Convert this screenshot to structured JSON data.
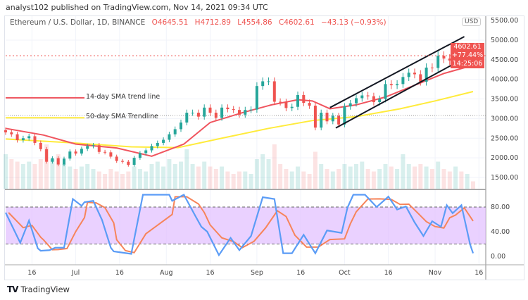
{
  "header": {
    "published": "analyst102 published on TradingView.com, Nov 14, 2021 09:34 UTC"
  },
  "legend": {
    "symbol": "Ethereum / U.S. Dollar, 1D, BINANCE",
    "open": "O4645.51",
    "high": "H4712.89",
    "low": "L4554.86",
    "close": "C4602.61",
    "change": "−43.13 (−0.93%)"
  },
  "price_label": {
    "price": "4602.61",
    "change_pct": "+77.44%",
    "countdown": "14:25:06"
  },
  "currency": "USD",
  "footer": {
    "logo_text": "TradingView"
  },
  "colors": {
    "up": "#26a69a",
    "down": "#ef5350",
    "sma14": "#f0545e",
    "sma50": "#ffeb3b",
    "stoch_k": "#5b9cf6",
    "stoch_d": "#f7845a",
    "band": "#e1bdff"
  },
  "chart_data": [
    {
      "type": "candlestick",
      "price_axis": {
        "ticks": [
          "5500.00",
          "5000.00",
          "4500.00",
          "4000.00",
          "3500.00",
          "3000.00",
          "2500.00",
          "2000.00",
          "1500.00"
        ],
        "range": [
          1400,
          5450
        ]
      },
      "time_axis": {
        "ticks": [
          {
            "date": "2021-06-16",
            "label": "16"
          },
          {
            "date": "2021-07-01",
            "label": "Jul"
          },
          {
            "date": "2021-07-16",
            "label": "16"
          },
          {
            "date": "2021-08-01",
            "label": "Aug"
          },
          {
            "date": "2021-08-16",
            "label": "16"
          },
          {
            "date": "2021-09-01",
            "label": "Sep"
          },
          {
            "date": "2021-09-16",
            "label": "16"
          },
          {
            "date": "2021-10-01",
            "label": "Oct"
          },
          {
            "date": "2021-10-16",
            "label": "16"
          },
          {
            "date": "2021-11-01",
            "label": "Nov"
          },
          {
            "date": "2021-11-16",
            "label": "16"
          }
        ],
        "range": [
          "2021-06-06",
          "2021-11-17"
        ]
      },
      "grid": true,
      "candles": [
        [
          "2021-06-07",
          2650
        ],
        [
          "2021-06-09",
          2600
        ],
        [
          "2021-06-11",
          2450
        ],
        [
          "2021-06-13",
          2500
        ],
        [
          "2021-06-15",
          2550
        ],
        [
          "2021-06-17",
          2380
        ],
        [
          "2021-06-19",
          2220
        ],
        [
          "2021-06-21",
          1900
        ],
        [
          "2021-06-23",
          1990
        ],
        [
          "2021-06-25",
          1830
        ],
        [
          "2021-06-27",
          1980
        ],
        [
          "2021-06-29",
          2160
        ],
        [
          "2021-07-01",
          2110
        ],
        [
          "2021-07-03",
          2230
        ],
        [
          "2021-07-05",
          2300
        ],
        [
          "2021-07-07",
          2320
        ],
        [
          "2021-07-09",
          2150
        ],
        [
          "2021-07-11",
          2140
        ],
        [
          "2021-07-13",
          2030
        ],
        [
          "2021-07-15",
          1920
        ],
        [
          "2021-07-17",
          1900
        ],
        [
          "2021-07-19",
          1820
        ],
        [
          "2021-07-21",
          2000
        ],
        [
          "2021-07-23",
          2120
        ],
        [
          "2021-07-25",
          2190
        ],
        [
          "2021-07-27",
          2300
        ],
        [
          "2021-07-29",
          2380
        ],
        [
          "2021-07-31",
          2460
        ],
        [
          "2021-08-02",
          2600
        ],
        [
          "2021-08-04",
          2730
        ],
        [
          "2021-08-06",
          2900
        ],
        [
          "2021-08-08",
          3150
        ],
        [
          "2021-08-10",
          3150
        ],
        [
          "2021-08-12",
          3050
        ],
        [
          "2021-08-14",
          3280
        ],
        [
          "2021-08-16",
          3150
        ],
        [
          "2021-08-18",
          3020
        ],
        [
          "2021-08-20",
          3280
        ],
        [
          "2021-08-22",
          3240
        ],
        [
          "2021-08-24",
          3220
        ],
        [
          "2021-08-26",
          3100
        ],
        [
          "2021-08-28",
          3220
        ],
        [
          "2021-08-30",
          3230
        ],
        [
          "2021-09-01",
          3830
        ],
        [
          "2021-09-03",
          3950
        ],
        [
          "2021-09-05",
          3950
        ],
        [
          "2021-09-07",
          3430
        ],
        [
          "2021-09-09",
          3420
        ],
        [
          "2021-09-11",
          3270
        ],
        [
          "2021-09-13",
          3300
        ],
        [
          "2021-09-15",
          3600
        ],
        [
          "2021-09-17",
          3400
        ],
        [
          "2021-09-19",
          3330
        ],
        [
          "2021-09-21",
          2770
        ],
        [
          "2021-09-23",
          3150
        ],
        [
          "2021-09-25",
          2930
        ],
        [
          "2021-09-27",
          3070
        ],
        [
          "2021-09-29",
          2850
        ],
        [
          "2021-10-01",
          3310
        ],
        [
          "2021-10-03",
          3390
        ],
        [
          "2021-10-05",
          3520
        ],
        [
          "2021-10-07",
          3590
        ],
        [
          "2021-10-09",
          3570
        ],
        [
          "2021-10-11",
          3420
        ],
        [
          "2021-10-13",
          3500
        ],
        [
          "2021-10-15",
          3880
        ],
        [
          "2021-10-17",
          3850
        ],
        [
          "2021-10-19",
          3880
        ],
        [
          "2021-10-21",
          4060
        ],
        [
          "2021-10-23",
          4170
        ],
        [
          "2021-10-25",
          4130
        ],
        [
          "2021-10-27",
          3940
        ],
        [
          "2021-10-29",
          4300
        ],
        [
          "2021-10-31",
          4290
        ],
        [
          "2021-11-02",
          4600
        ],
        [
          "2021-11-04",
          4530
        ],
        [
          "2021-11-06",
          4480
        ],
        [
          "2021-11-08",
          4810
        ],
        [
          "2021-11-10",
          4650
        ],
        [
          "2021-11-12",
          4660
        ],
        [
          "2021-11-14",
          4602.61
        ]
      ],
      "volume_relative": [
        0.7,
        0.6,
        0.55,
        0.5,
        0.55,
        0.5,
        0.6,
        0.9,
        0.6,
        0.7,
        0.5,
        0.45,
        0.4,
        0.45,
        0.5,
        0.4,
        0.35,
        0.3,
        0.4,
        0.35,
        0.3,
        0.35,
        0.45,
        0.4,
        0.35,
        0.5,
        0.55,
        0.45,
        0.6,
        0.5,
        0.55,
        0.8,
        0.5,
        0.45,
        0.55,
        0.45,
        0.4,
        0.45,
        0.35,
        0.3,
        0.35,
        0.35,
        0.3,
        0.6,
        0.7,
        0.6,
        0.9,
        0.5,
        0.4,
        0.35,
        0.45,
        0.35,
        0.3,
        0.75,
        0.5,
        0.4,
        0.35,
        0.4,
        0.5,
        0.45,
        0.5,
        0.55,
        0.4,
        0.35,
        0.4,
        0.5,
        0.45,
        0.4,
        0.7,
        0.5,
        0.45,
        0.5,
        0.45,
        0.4,
        0.55,
        0.4,
        0.35,
        0.45,
        0.35,
        0.3,
        0.15
      ],
      "sma14": [
        [
          "2021-06-07",
          2750
        ],
        [
          "2021-06-20",
          2580
        ],
        [
          "2021-07-01",
          2350
        ],
        [
          "2021-07-15",
          2250
        ],
        [
          "2021-07-27",
          2040
        ],
        [
          "2021-08-07",
          2350
        ],
        [
          "2021-08-16",
          2900
        ],
        [
          "2021-08-27",
          3150
        ],
        [
          "2021-09-06",
          3350
        ],
        [
          "2021-09-15",
          3480
        ],
        [
          "2021-09-20",
          3450
        ],
        [
          "2021-09-26",
          3250
        ],
        [
          "2021-10-05",
          3350
        ],
        [
          "2021-10-15",
          3550
        ],
        [
          "2021-10-25",
          3850
        ],
        [
          "2021-11-04",
          4150
        ],
        [
          "2021-11-14",
          4360
        ]
      ],
      "sma50": [
        [
          "2021-06-07",
          2480
        ],
        [
          "2021-06-30",
          2380
        ],
        [
          "2021-07-20",
          2280
        ],
        [
          "2021-08-05",
          2260
        ],
        [
          "2021-08-20",
          2500
        ],
        [
          "2021-09-05",
          2750
        ],
        [
          "2021-09-20",
          2950
        ],
        [
          "2021-10-05",
          3050
        ],
        [
          "2021-10-20",
          3250
        ],
        [
          "2021-11-01",
          3450
        ],
        [
          "2021-11-14",
          3690
        ]
      ],
      "horizontal_line": 3080,
      "last_price_line": 4602.61,
      "channel": {
        "upper": [
          [
            "2021-09-26",
            3280
          ],
          [
            "2021-11-11",
            5090
          ]
        ],
        "lower": [
          [
            "2021-09-28",
            2760
          ],
          [
            "2021-11-14",
            4660
          ]
        ]
      },
      "annotations": [
        {
          "text": "14-day SMA trend line",
          "price": 3530,
          "color": "#f0545e"
        },
        {
          "text": "50-day SMA Trendline",
          "price": 3020,
          "color": "#ffeb3b"
        }
      ]
    },
    {
      "type": "line",
      "y_axis": {
        "ticks": [
          "80.00",
          "40.00",
          "0.00"
        ],
        "range": [
          0,
          100
        ]
      },
      "bands": [
        20,
        80
      ],
      "k": [
        [
          "2021-06-07",
          71
        ],
        [
          "2021-06-12",
          22
        ],
        [
          "2021-06-15",
          58
        ],
        [
          "2021-06-18",
          13
        ],
        [
          "2021-06-19",
          9
        ],
        [
          "2021-06-22",
          10
        ],
        [
          "2021-06-24",
          14
        ],
        [
          "2021-06-27",
          14
        ],
        [
          "2021-06-30",
          93
        ],
        [
          "2021-07-03",
          82
        ],
        [
          "2021-07-04",
          88
        ],
        [
          "2021-07-07",
          90
        ],
        [
          "2021-07-10",
          59
        ],
        [
          "2021-07-13",
          14
        ],
        [
          "2021-07-14",
          8
        ],
        [
          "2021-07-17",
          6
        ],
        [
          "2021-07-20",
          4
        ],
        [
          "2021-07-24",
          100
        ],
        [
          "2021-08-02",
          100
        ],
        [
          "2021-08-03",
          90
        ],
        [
          "2021-08-07",
          100
        ],
        [
          "2021-08-11",
          65
        ],
        [
          "2021-08-13",
          48
        ],
        [
          "2021-08-15",
          40
        ],
        [
          "2021-08-19",
          2
        ],
        [
          "2021-08-23",
          30
        ],
        [
          "2021-08-26",
          10
        ],
        [
          "2021-08-30",
          33
        ],
        [
          "2021-09-03",
          96
        ],
        [
          "2021-09-07",
          93
        ],
        [
          "2021-09-10",
          5
        ],
        [
          "2021-09-13",
          5
        ],
        [
          "2021-09-17",
          35
        ],
        [
          "2021-09-21",
          5
        ],
        [
          "2021-09-25",
          42
        ],
        [
          "2021-09-30",
          38
        ],
        [
          "2021-10-02",
          79
        ],
        [
          "2021-10-04",
          100
        ],
        [
          "2021-10-08",
          100
        ],
        [
          "2021-10-12",
          80
        ],
        [
          "2021-10-16",
          97
        ],
        [
          "2021-10-19",
          76
        ],
        [
          "2021-10-22",
          81
        ],
        [
          "2021-10-25",
          55
        ],
        [
          "2021-10-28",
          33
        ],
        [
          "2021-10-31",
          57
        ],
        [
          "2021-11-03",
          48
        ],
        [
          "2021-11-05",
          83
        ],
        [
          "2021-11-07",
          70
        ],
        [
          "2021-11-10",
          83
        ],
        [
          "2021-11-13",
          19
        ],
        [
          "2021-11-14",
          5
        ]
      ]
    }
  ]
}
